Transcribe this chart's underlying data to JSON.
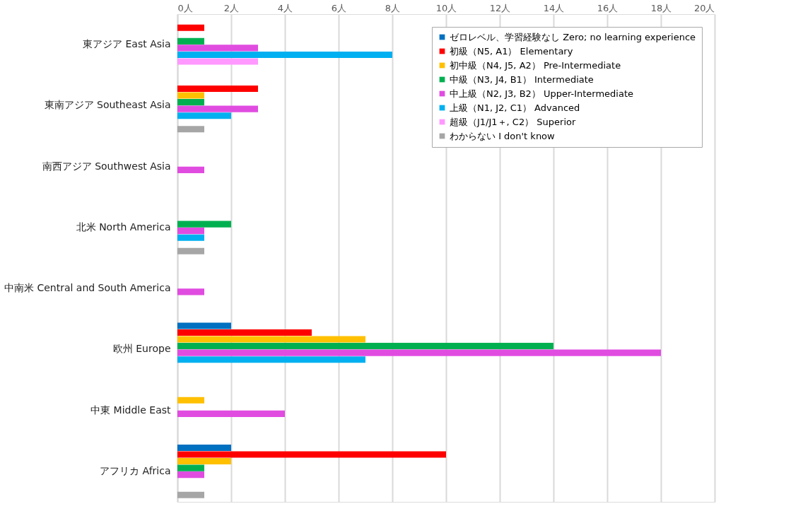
{
  "chart_data": {
    "type": "bar",
    "orientation": "horizontal",
    "categories": [
      "東アジア East Asia",
      "東南アジア Southeast Asia",
      "南西アジア Southwest Asia",
      "北米 North America",
      "中南米 Central and South America",
      "欧州 Europe",
      "中東 Middle East",
      "アフリカ Africa"
    ],
    "series": [
      {
        "name": "ゼロレベル、学習経験なし Zero; no learning experience",
        "color": "#0070c0",
        "values": [
          null,
          null,
          null,
          null,
          null,
          2,
          null,
          2
        ]
      },
      {
        "name": "初級（N5, A1） Elementary",
        "color": "#ff0000",
        "values": [
          1,
          3,
          null,
          null,
          null,
          5,
          null,
          10
        ]
      },
      {
        "name": "初中級（N4, J5, A2） Pre-Intermediate",
        "color": "#ffc000",
        "values": [
          null,
          1,
          null,
          null,
          null,
          7,
          1,
          2
        ]
      },
      {
        "name": "中級（N3, J4, B1） Intermediate",
        "color": "#00b050",
        "values": [
          1,
          1,
          null,
          2,
          null,
          14,
          null,
          1
        ]
      },
      {
        "name": "中上級（N2, J3, B2） Upper-Intermediate",
        "color": "#e04ce0",
        "values": [
          3,
          3,
          1,
          1,
          1,
          18,
          4,
          1
        ]
      },
      {
        "name": "上級（N1, J2, C1） Advanced",
        "color": "#00b0f0",
        "values": [
          8,
          2,
          null,
          1,
          null,
          7,
          null,
          null
        ]
      },
      {
        "name": "超級（J1/J1＋, C2） Superior",
        "color": "#ff99ff",
        "values": [
          3,
          null,
          null,
          null,
          null,
          null,
          null,
          null
        ]
      },
      {
        "name": "わからない I don't know",
        "color": "#a6a6a6",
        "values": [
          null,
          1,
          null,
          1,
          null,
          null,
          null,
          1
        ]
      }
    ],
    "xlim": [
      0,
      20
    ],
    "xticks": [
      {
        "value": 0,
        "label": "0人"
      },
      {
        "value": 2,
        "label": "2人"
      },
      {
        "value": 4,
        "label": "4人"
      },
      {
        "value": 6,
        "label": "6人"
      },
      {
        "value": 8,
        "label": "8人"
      },
      {
        "value": 10,
        "label": "10人"
      },
      {
        "value": 12,
        "label": "12人"
      },
      {
        "value": 14,
        "label": "14人"
      },
      {
        "value": 16,
        "label": "16人"
      },
      {
        "value": 18,
        "label": "18人"
      },
      {
        "value": 20,
        "label": "20人"
      }
    ],
    "grid": "x",
    "legend": "top right"
  }
}
